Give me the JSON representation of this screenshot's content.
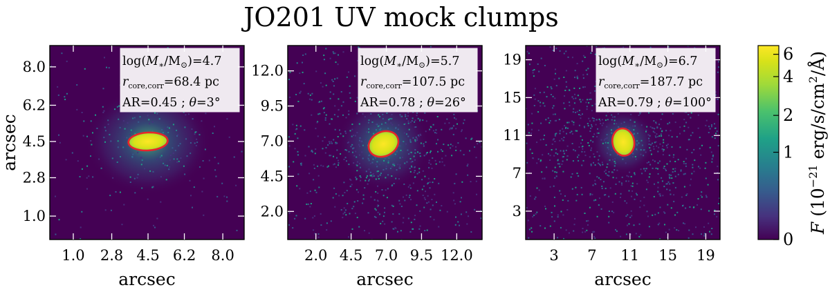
{
  "chart_data": {
    "title": "JO201 UV mock clumps",
    "colorbar": {
      "label": "F (10⁻²¹ erg/s/cm²/Å)",
      "ticks": [
        "6",
        "4",
        "2",
        "1",
        "0"
      ],
      "tick_values": [
        6,
        4,
        2,
        1,
        0
      ],
      "max": 6.6,
      "colormap": "viridis",
      "scale": "nonlinear (asinh-like)"
    },
    "panels": [
      {
        "type": "heatmap",
        "xlabel": "arcsec",
        "ylabel": "arcsec",
        "xlim": [
          -0.1,
          9.0
        ],
        "ylim": [
          -0.1,
          9.0
        ],
        "xticks": [
          "1.0",
          "2.8",
          "4.5",
          "6.2",
          "8.0"
        ],
        "xtick_values": [
          1.0,
          2.8,
          4.5,
          6.2,
          8.0
        ],
        "yticks": [
          "1.0",
          "2.8",
          "4.5",
          "6.2",
          "8.0"
        ],
        "ytick_values": [
          1.0,
          2.8,
          4.5,
          6.2,
          8.0
        ],
        "clump": {
          "center": [
            4.5,
            4.5
          ],
          "ellipse_semi_axes": [
            0.92,
            0.42
          ],
          "ellipse_angle_deg": 3,
          "ellipse_color": "#e8242a"
        },
        "annotation": [
          "log(M*/M⊙)=4.7",
          "rcore,corr=68.4 pc",
          "AR=0.45 ; θ=3°"
        ]
      },
      {
        "type": "heatmap",
        "xlabel": "arcsec",
        "ylabel": "",
        "xlim": [
          0.0,
          13.8
        ],
        "ylim": [
          0.0,
          13.8
        ],
        "xticks": [
          "2.0",
          "4.5",
          "7.0",
          "9.5",
          "12.0"
        ],
        "xtick_values": [
          2.0,
          4.5,
          7.0,
          9.5,
          12.0
        ],
        "yticks": [
          "2.0",
          "4.5",
          "7.0",
          "9.5",
          "12.0"
        ],
        "ytick_values": [
          2.0,
          4.5,
          7.0,
          9.5,
          12.0
        ],
        "clump": {
          "center": [
            6.8,
            6.8
          ],
          "ellipse_semi_axes": [
            1.1,
            0.86
          ],
          "ellipse_angle_deg": 26,
          "ellipse_color": "#e8242a"
        },
        "annotation": [
          "log(M*/M⊙)=5.7",
          "rcore,corr=107.5 pc",
          "AR=0.78 ; θ=26°"
        ]
      },
      {
        "type": "heatmap",
        "xlabel": "arcsec",
        "ylabel": "",
        "xlim": [
          0.0,
          20.5
        ],
        "ylim": [
          0.0,
          20.5
        ],
        "xticks": [
          "3",
          "7",
          "11",
          "15",
          "19"
        ],
        "xtick_values": [
          3,
          7,
          11,
          15,
          19
        ],
        "yticks": [
          "3",
          "7",
          "11",
          "15",
          "19"
        ],
        "ytick_values": [
          3,
          7,
          11,
          15,
          19
        ],
        "clump": {
          "center": [
            10.3,
            10.3
          ],
          "ellipse_semi_axes": [
            1.45,
            1.15
          ],
          "ellipse_angle_deg": 100,
          "ellipse_color": "#e8242a"
        },
        "annotation": [
          "log(M*/M⊙)=6.7",
          "rcore,corr=187.7 pc",
          "AR=0.79 ; θ=100°"
        ]
      }
    ]
  }
}
